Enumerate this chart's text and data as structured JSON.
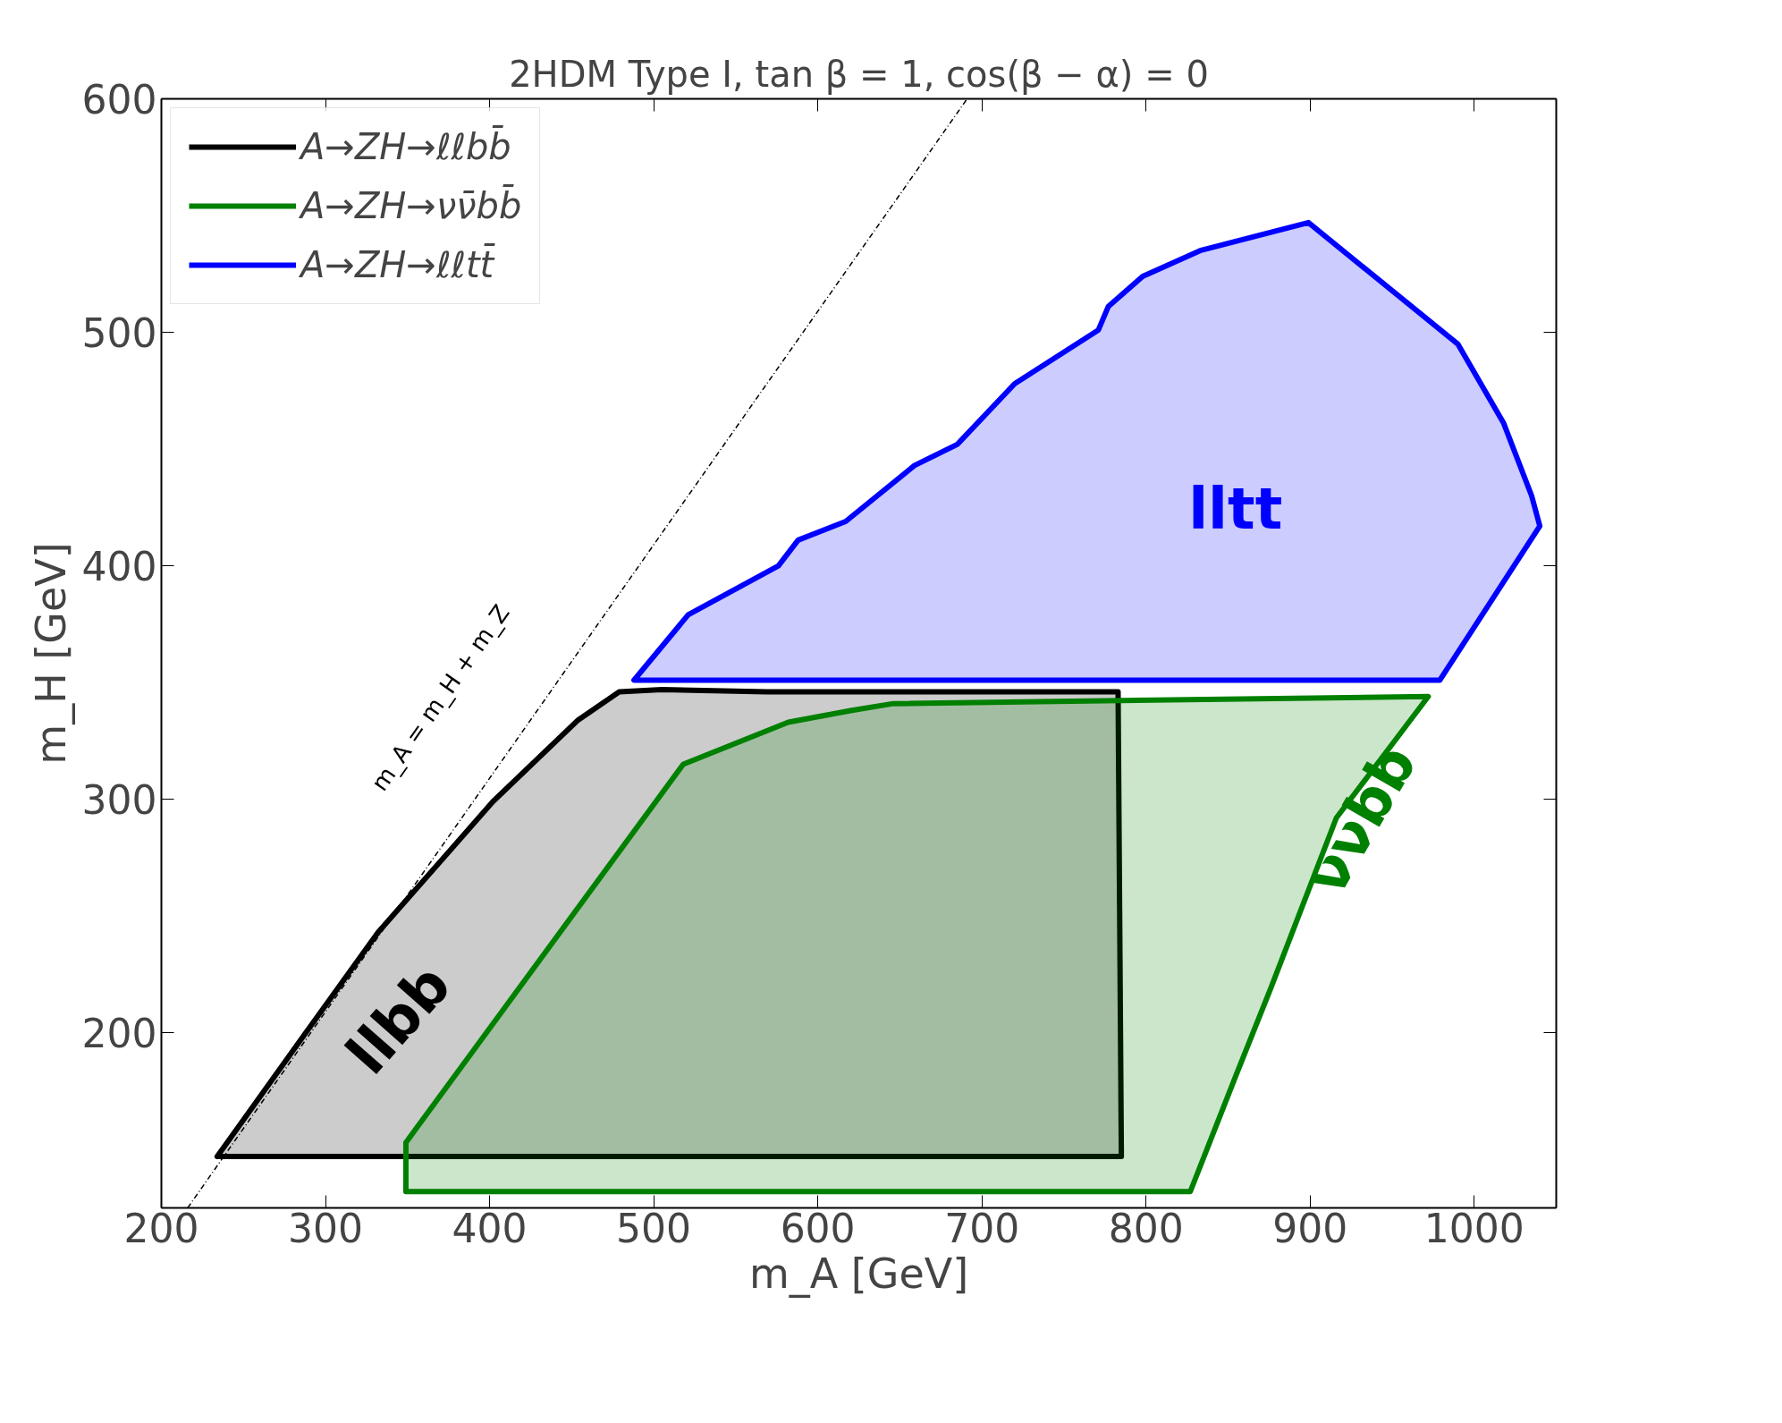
{
  "chart_data": {
    "type": "area",
    "title": "2HDM Type I, tan β = 1, cos(β − α) = 0",
    "xlabel": "m_A [GeV]",
    "ylabel": "m_H [GeV]",
    "series": [
      {
        "name": "A→ZH→ℓℓbb̄",
        "color": "#000000",
        "x": [
          234,
          785,
          783,
          569,
          505,
          479,
          454,
          402,
          332,
          287
        ],
        "values": [
          147,
          147,
          346,
          346,
          347,
          346,
          334,
          299,
          243,
          199
        ]
      },
      {
        "name": "A→ZH→νν̄bb̄",
        "color": "#008000",
        "x": [
          349,
          827,
          855,
          876,
          916,
          972,
          646,
          620,
          582,
          518,
          349
        ],
        "values": [
          132,
          132,
          182,
          219,
          292,
          344,
          341,
          338,
          333,
          315,
          153
        ]
      },
      {
        "name": "A→ZH→ℓℓtt̄",
        "color": "#0000ff",
        "x": [
          488,
          979,
          1040,
          1035,
          1018,
          990,
          899,
          833,
          798,
          777,
          771,
          720,
          685,
          659,
          617,
          588,
          576,
          521
        ],
        "values": [
          351,
          351,
          417,
          430,
          461,
          495,
          547,
          535,
          524,
          511,
          501,
          478,
          452,
          443,
          419,
          411,
          400,
          379
        ]
      },
      {
        "type": "line",
        "color": "#000000",
        "line_style": "dashed",
        "x": [
          216,
          691
        ],
        "values": [
          125,
          600
        ]
      }
    ],
    "annotations": [
      "m_A = m_H + m_Z",
      "llbb",
      "ννbb",
      "lltt"
    ],
    "xlim": [
      200,
      1050
    ],
    "ylim": [
      125,
      600
    ],
    "xticks": [
      200,
      300,
      400,
      500,
      600,
      700,
      800,
      900,
      1000
    ],
    "yticks": [
      200,
      300,
      400,
      500,
      600
    ],
    "legend": "top left"
  }
}
